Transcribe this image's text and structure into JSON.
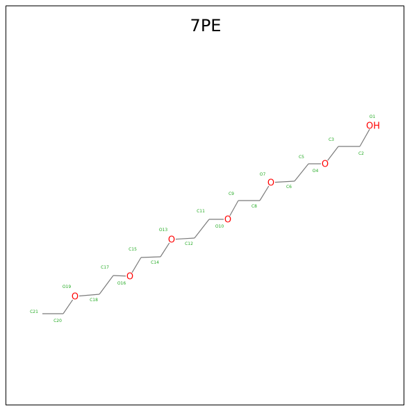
{
  "title": "7PE",
  "colors": {
    "bond": "#7a7a7a",
    "oxygen": "#ff0000",
    "label": "#22aa22"
  },
  "heteroatoms": {
    "hydroxyl": "OH",
    "ether": "O"
  },
  "atoms": [
    {
      "id": "O1",
      "element": "O",
      "text": "OH"
    },
    {
      "id": "C2",
      "element": "C"
    },
    {
      "id": "C3",
      "element": "C"
    },
    {
      "id": "O4",
      "element": "O",
      "text": "O"
    },
    {
      "id": "C5",
      "element": "C"
    },
    {
      "id": "C6",
      "element": "C"
    },
    {
      "id": "O7",
      "element": "O",
      "text": "O"
    },
    {
      "id": "C8",
      "element": "C"
    },
    {
      "id": "C9",
      "element": "C"
    },
    {
      "id": "O10",
      "element": "O",
      "text": "O"
    },
    {
      "id": "C11",
      "element": "C"
    },
    {
      "id": "C12",
      "element": "C"
    },
    {
      "id": "O13",
      "element": "O",
      "text": "O"
    },
    {
      "id": "C14",
      "element": "C"
    },
    {
      "id": "C15",
      "element": "C"
    },
    {
      "id": "O16",
      "element": "O",
      "text": "O"
    },
    {
      "id": "C17",
      "element": "C"
    },
    {
      "id": "C18",
      "element": "C"
    },
    {
      "id": "O19",
      "element": "O",
      "text": "O"
    },
    {
      "id": "C20",
      "element": "C"
    },
    {
      "id": "C21",
      "element": "C"
    }
  ]
}
